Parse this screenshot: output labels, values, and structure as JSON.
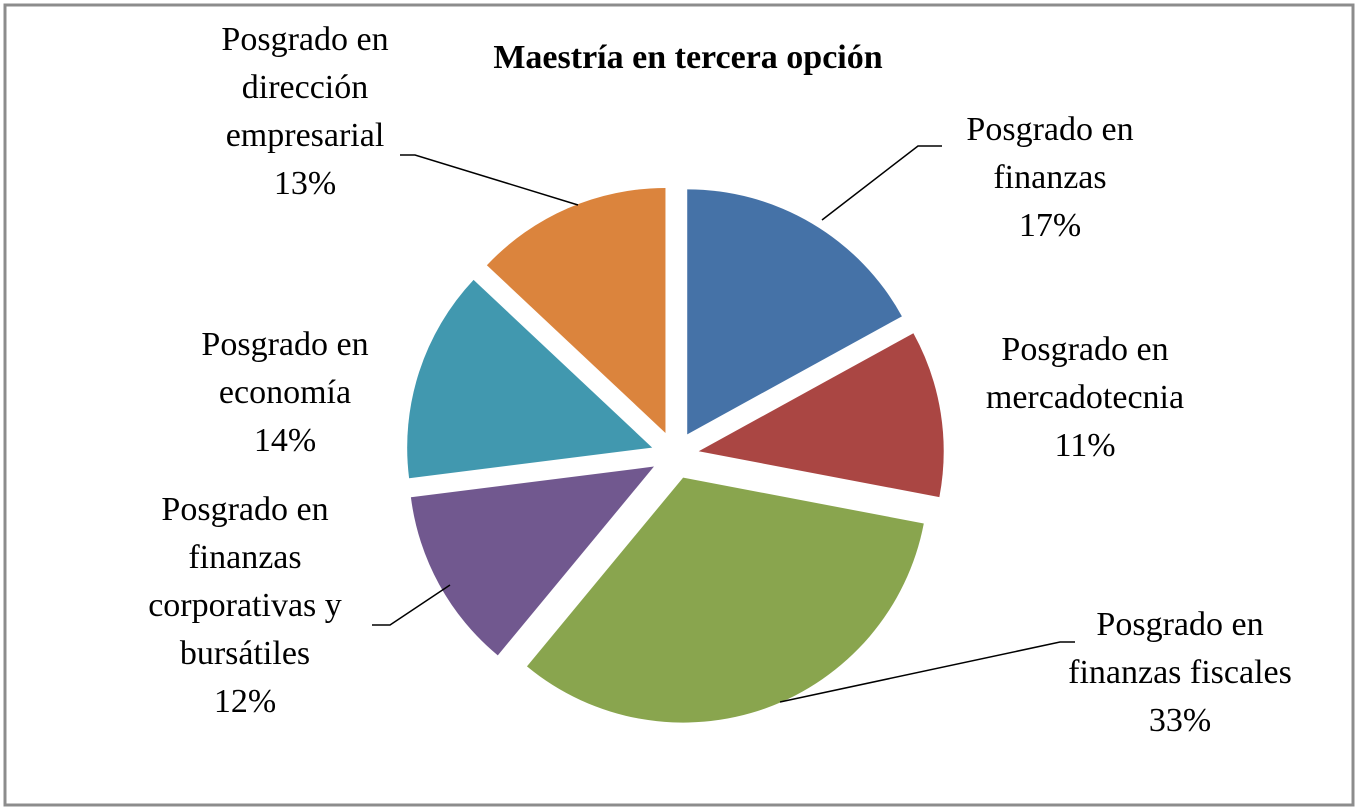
{
  "chart_data": {
    "type": "pie",
    "title": "Maestría en tercera opción",
    "categories": [
      "Posgrado en finanzas",
      "Posgrado en mercadotecnia",
      "Posgrado en finanzas fiscales",
      "Posgrado en finanzas corporativas y bursátiles",
      "Posgrado en economía",
      "Posgrado en dirección empresarial"
    ],
    "values": [
      17,
      11,
      33,
      12,
      14,
      13
    ],
    "value_labels": [
      "17%",
      "11%",
      "33%",
      "12%",
      "14%",
      "13%"
    ],
    "colors": [
      "#4572a7",
      "#aa4643",
      "#89a54e",
      "#71588f",
      "#4198af",
      "#db843d"
    ]
  }
}
